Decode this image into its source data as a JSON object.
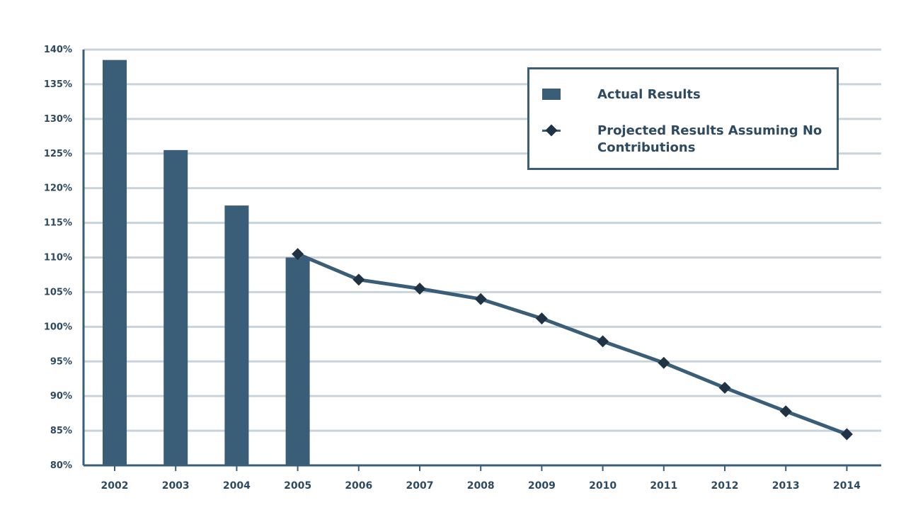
{
  "chart_data": {
    "type": "bar+line",
    "categories": [
      "2002",
      "2003",
      "2004",
      "2005",
      "2006",
      "2007",
      "2008",
      "2009",
      "2010",
      "2011",
      "2012",
      "2013",
      "2014"
    ],
    "series": [
      {
        "name": "Actual Results",
        "type": "bar",
        "values": [
          138.5,
          125.5,
          117.5,
          110.0,
          null,
          null,
          null,
          null,
          null,
          null,
          null,
          null,
          null
        ]
      },
      {
        "name": "Projected Results Assuming No Contributions",
        "type": "line",
        "values": [
          null,
          null,
          null,
          110.5,
          106.8,
          105.5,
          104.0,
          101.2,
          97.9,
          94.8,
          91.2,
          87.8,
          84.5
        ]
      }
    ],
    "yticks": [
      "80%",
      "85%",
      "90%",
      "95%",
      "100%",
      "105%",
      "110%",
      "115%",
      "120%",
      "125%",
      "130%",
      "135%",
      "140%"
    ],
    "ylim": [
      80,
      140
    ],
    "grid": true,
    "legend_position": "top-right",
    "colors": {
      "bar": "#3a5d78",
      "line": "#3a5d78",
      "marker": "#1f3344",
      "grid": "#c9d3dc",
      "text": "#2e4a61"
    }
  },
  "legend": {
    "bar_label": "Actual Results",
    "line_label": "Projected Results Assuming No Contributions"
  }
}
